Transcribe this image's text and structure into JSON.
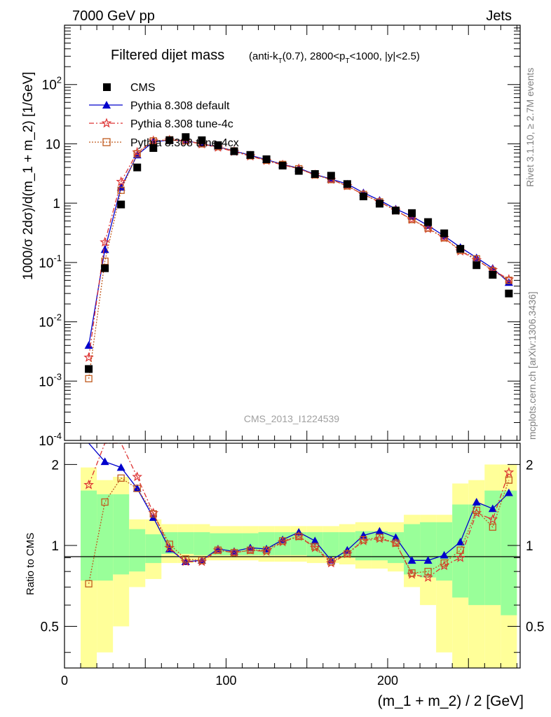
{
  "header": {
    "energy": "7000 GeV pp",
    "category": "Jets",
    "title_main": "Filtered dijet mass",
    "title_sub_a": "(anti-k",
    "title_sub_t1": "T",
    "title_sub_b": "(0.7), 2800<p",
    "title_sub_t2": "T",
    "title_sub_c": "<1000, |y|<2.5)"
  },
  "side": {
    "rivet": "Rivet 3.1.10, ≥ 2.7M events",
    "mcplots": "mcplots.cern.ch [arXiv:1306.3436]"
  },
  "analysis": "CMS_2013_I1224539",
  "axes": {
    "ylabel_main": "1000/σ 2dσ)/d(m_1 + m_2) [1/GeV]",
    "ylabel_ratio": "Ratio to CMS",
    "xlabel": "(m_1 + m_2) / 2 [GeV]"
  },
  "legend": {
    "cms": "CMS",
    "default": "Pythia 8.308 default",
    "tune4c": "Pythia 8.308 tune-4c",
    "tune4cx": "Pythia 8.308 tune-4cx"
  },
  "colors": {
    "data": "#000000",
    "default": "#0000cc",
    "tune4c": "#dd3333",
    "tune4cx": "#c05a1e",
    "band_inner": "#99ff99",
    "band_outer": "#ffff99"
  },
  "chart_data": {
    "type": "line",
    "x": [
      15,
      25,
      35,
      45,
      55,
      65,
      75,
      85,
      95,
      105,
      115,
      125,
      135,
      145,
      155,
      165,
      175,
      185,
      195,
      205,
      215,
      225,
      235,
      245,
      255,
      265,
      275
    ],
    "xlim": [
      0,
      282
    ],
    "main_ylim": [
      0.0001,
      1000
    ],
    "main_yscale": "log",
    "ratio_ylim": [
      0.35,
      2.4
    ],
    "ratio_yscale": "log",
    "x_ticks": [
      0,
      100,
      200
    ],
    "main_y_ticks": [
      "10^-4",
      "10^-3",
      "10^-2",
      "10^-1",
      "1",
      "10",
      "10^2"
    ],
    "ratio_y_ticks": [
      "0.5",
      "1",
      "2"
    ],
    "series": [
      {
        "name": "CMS",
        "values": [
          0.0016,
          0.08,
          0.95,
          4.0,
          8.5,
          11.5,
          13.0,
          11.5,
          9.5,
          7.5,
          6.5,
          5.5,
          4.3,
          3.5,
          3.1,
          2.9,
          2.1,
          1.3,
          0.98,
          0.75,
          0.68,
          0.48,
          0.31,
          0.17,
          0.09,
          0.062,
          0.03
        ]
      },
      {
        "name": "Pythia 8.308 default",
        "values": [
          0.004,
          0.165,
          1.85,
          6.5,
          10.8,
          11.6,
          11.3,
          10.0,
          8.9,
          7.6,
          6.4,
          5.4,
          4.5,
          3.9,
          3.05,
          2.55,
          2.1,
          1.5,
          1.12,
          0.8,
          0.6,
          0.42,
          0.28,
          0.18,
          0.12,
          0.08,
          0.046
        ]
      },
      {
        "name": "Pythia 8.308 tune-4c",
        "values": [
          0.0025,
          0.22,
          2.3,
          7.2,
          11.3,
          11.6,
          11.2,
          9.9,
          8.7,
          7.4,
          6.2,
          5.2,
          4.4,
          3.8,
          3.0,
          2.5,
          1.95,
          1.4,
          1.05,
          0.75,
          0.53,
          0.37,
          0.26,
          0.155,
          0.11,
          0.075,
          0.052
        ]
      },
      {
        "name": "Pythia 8.308 tune-4cx",
        "values": [
          0.0011,
          0.105,
          1.65,
          6.8,
          11.2,
          11.7,
          11.4,
          10.0,
          9.0,
          7.6,
          6.3,
          5.3,
          4.5,
          3.8,
          3.0,
          2.5,
          1.95,
          1.4,
          1.05,
          0.76,
          0.53,
          0.38,
          0.26,
          0.16,
          0.115,
          0.072,
          0.05
        ]
      }
    ],
    "ratio": {
      "default": [
        2.55,
        2.05,
        1.95,
        1.63,
        1.27,
        0.97,
        0.87,
        0.88,
        0.97,
        0.95,
        0.98,
        0.97,
        1.05,
        1.12,
        1.04,
        0.88,
        0.96,
        1.09,
        1.13,
        1.07,
        0.88,
        0.88,
        0.92,
        1.03,
        1.45,
        1.37,
        1.57
      ],
      "tune4c": [
        1.68,
        2.6,
        2.45,
        1.8,
        1.32,
        0.98,
        0.87,
        0.87,
        0.96,
        0.94,
        0.96,
        0.95,
        1.03,
        1.08,
        0.98,
        0.86,
        0.93,
        1.04,
        1.06,
        1.02,
        0.78,
        0.76,
        0.84,
        0.9,
        1.32,
        1.25,
        1.87
      ],
      "tune4cx": [
        0.72,
        1.45,
        1.78,
        1.63,
        1.31,
        1.01,
        0.89,
        0.88,
        0.96,
        0.94,
        0.96,
        0.96,
        1.04,
        1.08,
        0.99,
        0.87,
        0.93,
        1.05,
        1.07,
        1.02,
        0.79,
        0.8,
        0.86,
        0.96,
        1.35,
        1.17,
        1.75
      ]
    },
    "bands": {
      "inner": [
        [
          0.26,
          0.6
        ],
        [
          0.26,
          0.55
        ],
        [
          0.22,
          0.55
        ],
        [
          0.2,
          0.15
        ],
        [
          0.14,
          0.1
        ],
        [
          0.07,
          0.12
        ],
        [
          0.07,
          0.12
        ],
        [
          0.08,
          0.12
        ],
        [
          0.08,
          0.11
        ],
        [
          0.08,
          0.11
        ],
        [
          0.08,
          0.11
        ],
        [
          0.08,
          0.12
        ],
        [
          0.08,
          0.12
        ],
        [
          0.08,
          0.12
        ],
        [
          0.09,
          0.12
        ],
        [
          0.09,
          0.12
        ],
        [
          0.1,
          0.12
        ],
        [
          0.12,
          0.13
        ],
        [
          0.12,
          0.13
        ],
        [
          0.14,
          0.12
        ],
        [
          0.22,
          0.2
        ],
        [
          0.24,
          0.22
        ],
        [
          0.26,
          0.22
        ],
        [
          0.36,
          0.42
        ],
        [
          0.4,
          0.42
        ],
        [
          0.4,
          0.6
        ],
        [
          0.45,
          0.6
        ]
      ],
      "outer": [
        [
          0.65,
          0.95
        ],
        [
          0.6,
          0.75
        ],
        [
          0.5,
          0.8
        ],
        [
          0.3,
          0.25
        ],
        [
          0.25,
          0.25
        ],
        [
          0.14,
          0.2
        ],
        [
          0.14,
          0.2
        ],
        [
          0.12,
          0.2
        ],
        [
          0.12,
          0.18
        ],
        [
          0.12,
          0.18
        ],
        [
          0.12,
          0.18
        ],
        [
          0.13,
          0.18
        ],
        [
          0.13,
          0.18
        ],
        [
          0.13,
          0.18
        ],
        [
          0.14,
          0.18
        ],
        [
          0.14,
          0.18
        ],
        [
          0.15,
          0.2
        ],
        [
          0.18,
          0.22
        ],
        [
          0.18,
          0.22
        ],
        [
          0.2,
          0.22
        ],
        [
          0.3,
          0.3
        ],
        [
          0.4,
          0.3
        ],
        [
          0.6,
          0.3
        ],
        [
          0.65,
          0.7
        ],
        [
          0.65,
          0.75
        ],
        [
          0.65,
          1.0
        ],
        [
          0.65,
          1.0
        ]
      ]
    }
  }
}
